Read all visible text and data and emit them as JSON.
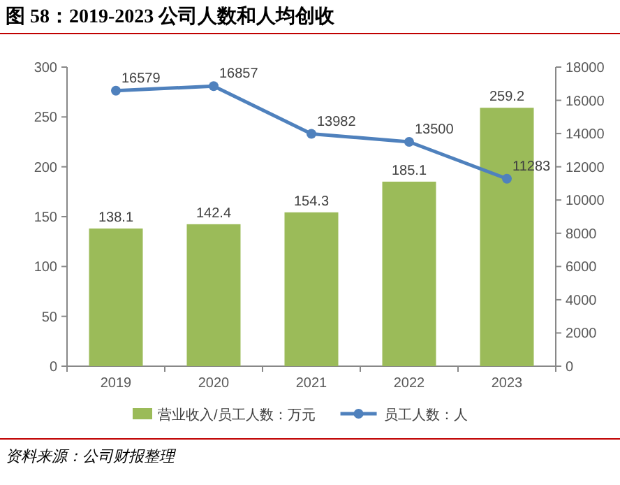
{
  "chart_data": {
    "type": "bar",
    "title": "图 58：2019-2023 公司人数和人均创收",
    "categories": [
      "2019",
      "2020",
      "2021",
      "2022",
      "2023"
    ],
    "series": [
      {
        "name": "营业收入/员工人数：万元",
        "color": "#9bbb59",
        "values": [
          138.1,
          142.4,
          154.3,
          185.1,
          259.2
        ]
      },
      {
        "name": "员工人数：人",
        "type": "line",
        "axis": "y2",
        "color": "#4f81bd",
        "values": [
          16579,
          16857,
          13982,
          13500,
          11283
        ]
      }
    ],
    "ylim": [
      0,
      300
    ],
    "yticks": [
      0,
      50,
      100,
      150,
      200,
      250,
      300
    ],
    "y2lim": [
      0,
      18000
    ],
    "y2ticks": [
      0,
      2000,
      4000,
      6000,
      8000,
      10000,
      12000,
      14000,
      16000,
      18000
    ],
    "data_labels": true,
    "marker": "circle",
    "legend": "bottom",
    "grid": false,
    "annotations": [
      "资料来源：公司财报整理"
    ]
  }
}
